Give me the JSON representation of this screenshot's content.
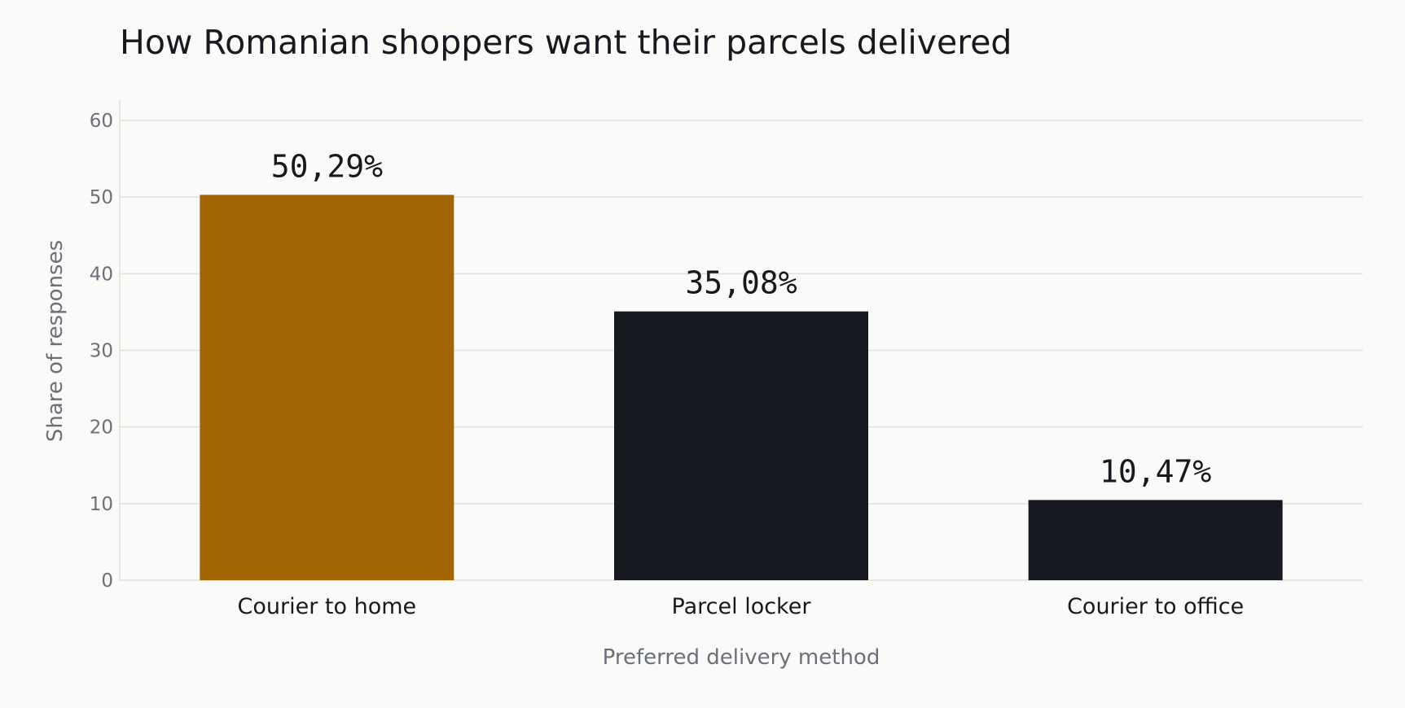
{
  "colors": {
    "highlight": "#a16400",
    "default": "#16191f",
    "grid": "#dfdfdc",
    "muted": "#6b6f7b"
  },
  "chart_data": {
    "type": "bar",
    "title": "How Romanian shoppers want their parcels delivered",
    "xlabel": "Preferred delivery method",
    "ylabel": "Share of responses",
    "ylim": [
      0,
      60
    ],
    "yticks": [
      0,
      10,
      20,
      30,
      40,
      50,
      60
    ],
    "grid": true,
    "categories": [
      "Courier to home",
      "Parcel locker",
      "Courier to office"
    ],
    "values": [
      50.29,
      35.08,
      10.47
    ],
    "data_labels": [
      "50,29%",
      "35,08%",
      "10,47%"
    ],
    "highlighted_category": "Courier to home"
  }
}
